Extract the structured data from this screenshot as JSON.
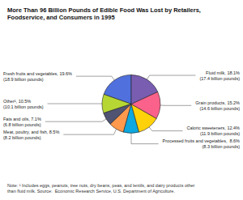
{
  "chart_data": {
    "type": "pie",
    "title": "More Than 96 Billion Pounds of Edible Food Was Lost by Retailers,\nFoodservice, and Consumers in 1995",
    "note": "Note: ¹ Includes eggs, peanuts, tree nuts, dry beans, peas, and lentils, and dairy products other\nthan fluid milk. Source:  Economic Research Service, U.S. Department of Agriculture.",
    "categories": [
      "Fresh fruits and vegetables, 19.6%\n(18.9 billion pounds)",
      "Other¹, 10.5%\n(10.1 billion pounds)",
      "Fats and oils, 7.1%\n(6.8 billion pounds)",
      "Meat, poultry, and fish, 8.5%\n(8.2 billion pounds)",
      "Processed fruits and vegetables,  8.6%\n(8.3 billion pounds)",
      "Caloric sweeteners, 12.4%\n(11.9 billion pounds)",
      "Grain products, 15.2%\n(14.6 billion pounds)",
      "Fluid milk, 18.1%\n(17.4 billion pounds)"
    ],
    "values": [
      19.6,
      10.5,
      7.1,
      8.5,
      8.6,
      12.4,
      15.2,
      18.1
    ]
  }
}
